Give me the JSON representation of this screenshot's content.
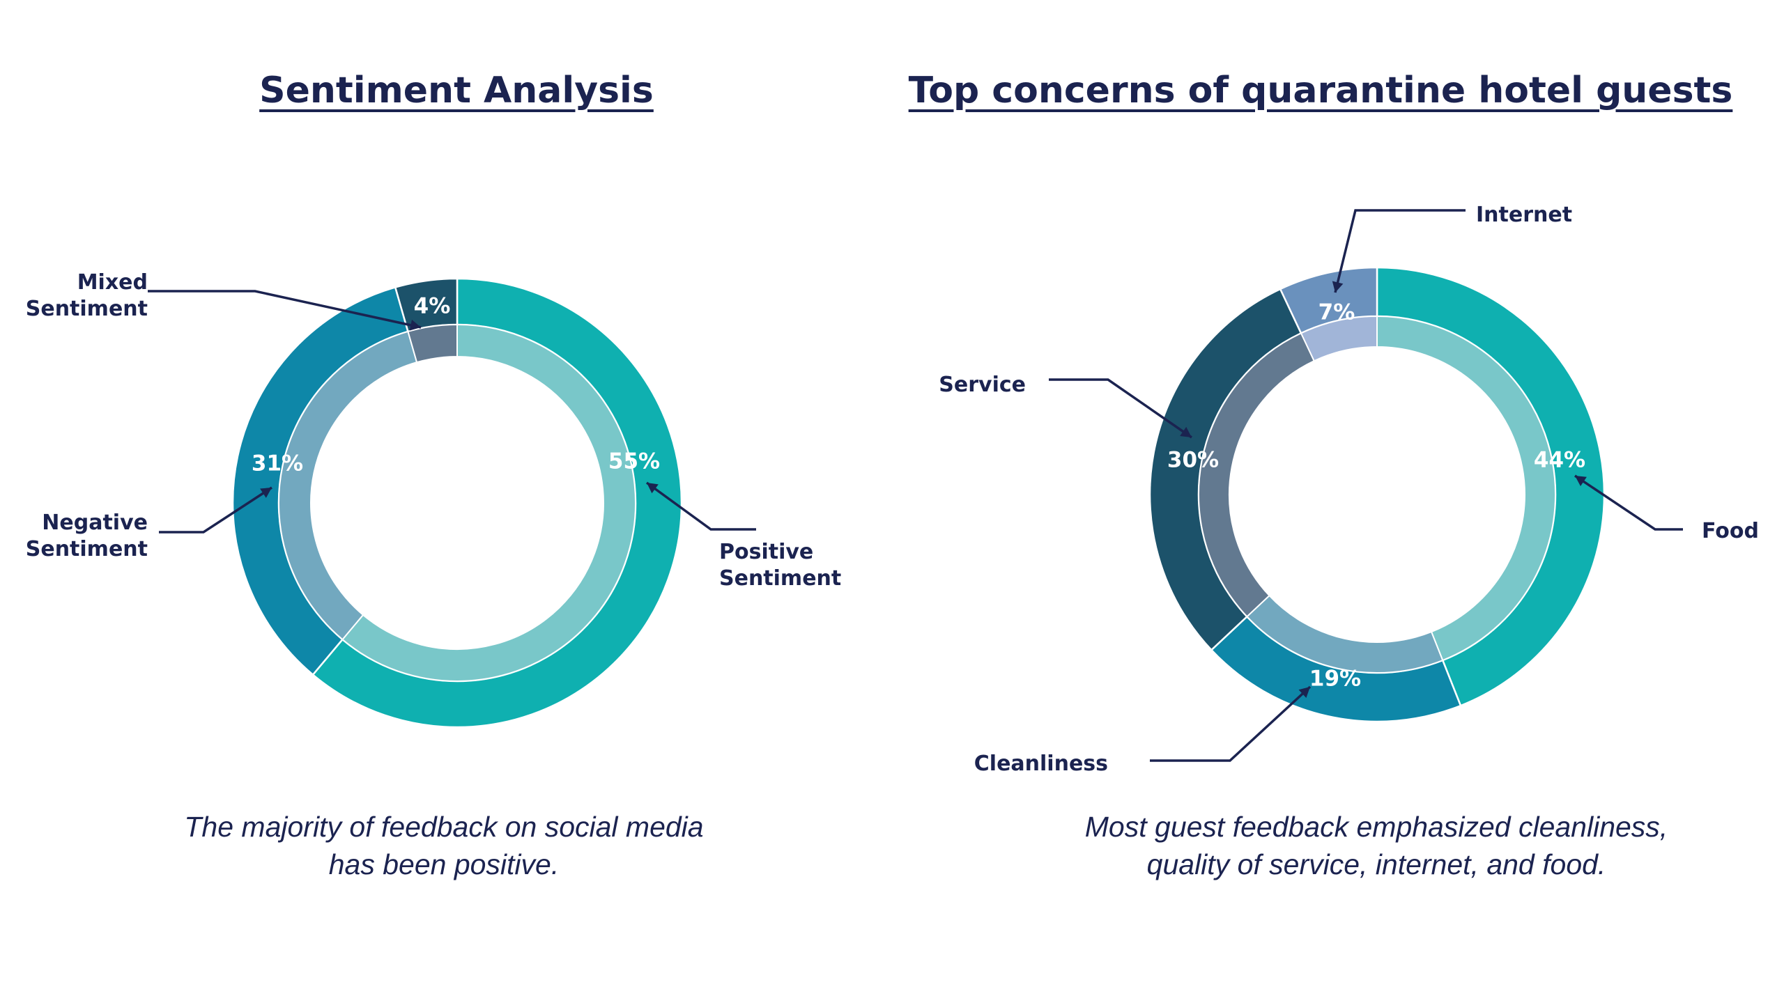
{
  "chart_data": [
    {
      "type": "pie",
      "title": "Sentiment Analysis",
      "caption": [
        "The majority of feedback on social media",
        "has been positive."
      ],
      "categories": [
        "Positive Sentiment",
        "Negative Sentiment",
        "Mixed Sentiment"
      ],
      "values": [
        55,
        31,
        4
      ],
      "value_labels": [
        "55%",
        "31%",
        "4%"
      ],
      "label_lines": [
        [
          "Positive",
          "Sentiment"
        ],
        [
          "Negative",
          "Sentiment"
        ],
        [
          "Mixed",
          "Sentiment"
        ]
      ],
      "colors": {
        "outer": [
          "#0fb0b0",
          "#0e87a8",
          "#1c526a"
        ],
        "inner": [
          "#79c7c9",
          "#72a8bf",
          "#627990"
        ]
      }
    },
    {
      "type": "pie",
      "title": "Top concerns of quarantine hotel guests",
      "caption": [
        "Most guest feedback emphasized cleanliness,",
        "quality of service, internet, and food."
      ],
      "categories": [
        "Food",
        "Cleanliness",
        "Service",
        "Internet"
      ],
      "values": [
        44,
        19,
        30,
        7
      ],
      "value_labels": [
        "44%",
        "19%",
        "30%",
        "7%"
      ],
      "label_lines": [
        [
          "Food"
        ],
        [
          "Cleanliness"
        ],
        [
          "Service"
        ],
        [
          "Internet"
        ]
      ],
      "colors": {
        "outer": [
          "#0fb0b0",
          "#0e87a8",
          "#1c526a",
          "#6a91bd"
        ],
        "inner": [
          "#79c7c9",
          "#72a8bf",
          "#627990",
          "#a1b5d8"
        ]
      }
    }
  ]
}
